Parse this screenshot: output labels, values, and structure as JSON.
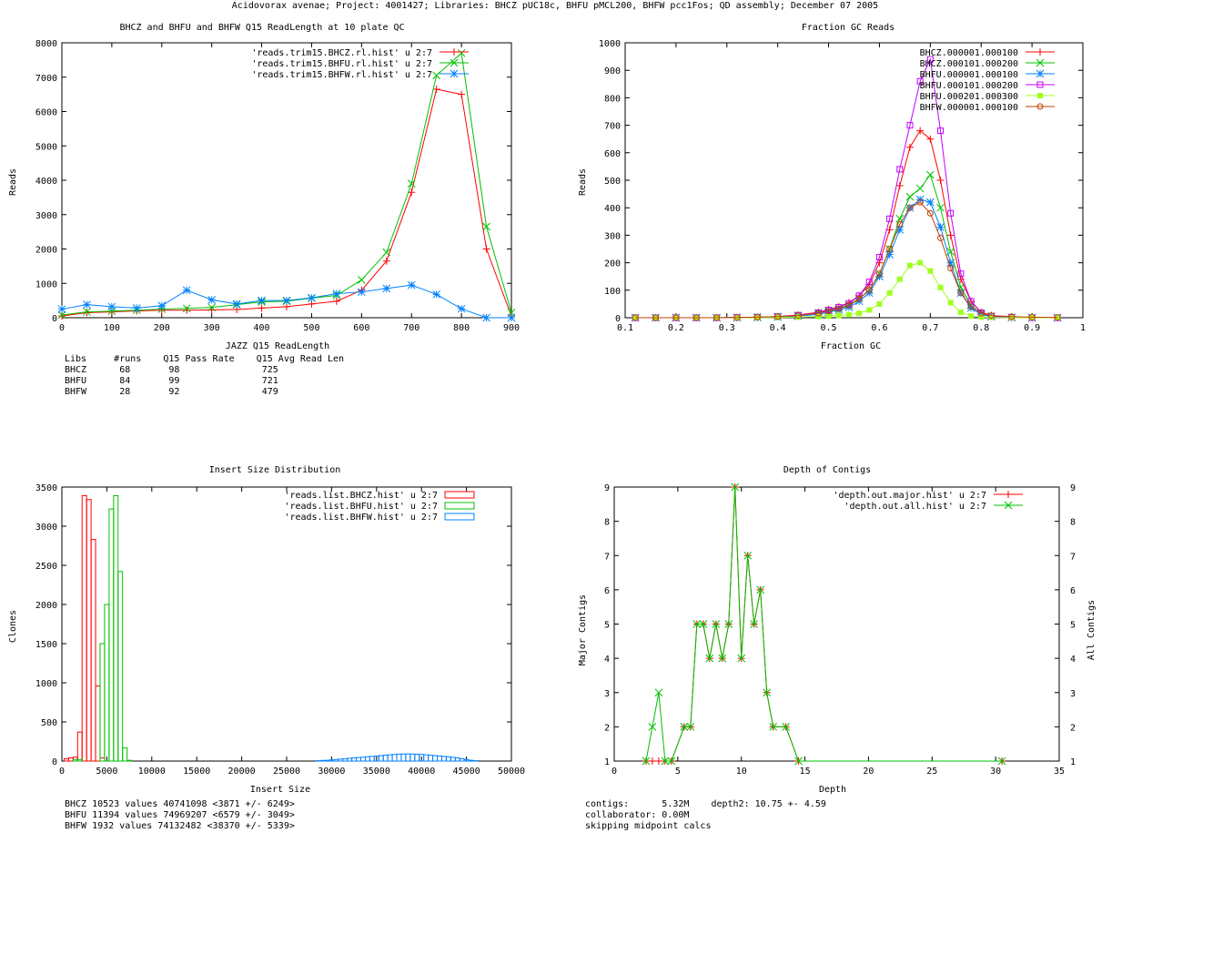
{
  "page_title": "Acidovorax avenae; Project: 4001427; Libraries: BHCZ pUC18c, BHFU pMCL200, BHFW pcc1Fos; QD assembly; December 07 2005",
  "colors": {
    "red": "#ff0000",
    "green": "#00c000",
    "blue": "#0080ff",
    "magenta": "#c000ff",
    "lime": "#a0ff20",
    "brown": "#c04000",
    "frame": "#000000"
  },
  "chart_data": [
    {
      "id": "readlength",
      "type": "line",
      "title": "BHCZ and BHFU and BHFW Q15 ReadLength at 10 plate QC",
      "xlabel": "JAZZ Q15 ReadLength",
      "ylabel": "Reads",
      "xlim": [
        0,
        900
      ],
      "ylim": [
        0,
        8000
      ],
      "xticks": [
        0,
        100,
        200,
        300,
        400,
        500,
        600,
        700,
        800,
        900
      ],
      "yticks": [
        0,
        1000,
        2000,
        3000,
        4000,
        5000,
        6000,
        7000,
        8000
      ],
      "x": [
        0,
        50,
        100,
        150,
        200,
        250,
        300,
        350,
        400,
        450,
        500,
        550,
        600,
        650,
        700,
        750,
        800,
        850,
        900
      ],
      "series": [
        {
          "name": "'reads.trim15.BHCZ.rl.hist' u 2:7",
          "color": "#ff0000",
          "marker": "plus",
          "values": [
            50,
            150,
            170,
            200,
            220,
            220,
            230,
            240,
            280,
            320,
            400,
            480,
            800,
            1650,
            3650,
            6650,
            6500,
            2000,
            50
          ]
        },
        {
          "name": "'reads.trim15.BHFU.rl.hist' u 2:7",
          "color": "#00c000",
          "marker": "cross",
          "values": [
            80,
            170,
            190,
            220,
            250,
            270,
            300,
            380,
            460,
            480,
            570,
            650,
            1100,
            1900,
            3900,
            7050,
            7700,
            2650,
            150
          ]
        },
        {
          "name": "'reads.trim15.BHFW.rl.hist' u 2:7",
          "color": "#0080ff",
          "marker": "star",
          "values": [
            250,
            380,
            320,
            280,
            350,
            800,
            520,
            400,
            500,
            500,
            580,
            700,
            750,
            850,
            950,
            680,
            260,
            0,
            0
          ]
        }
      ],
      "table": {
        "header": "Libs     #runs    Q15 Pass Rate    Q15 Avg Read Len",
        "rows": [
          "BHCZ      68       98               725",
          "BHFU      84       99               721",
          "BHFW      28       92               479"
        ]
      }
    },
    {
      "id": "gc",
      "type": "scatter",
      "title": "Fraction GC Reads",
      "xlabel": "Fraction GC",
      "ylabel": "Reads",
      "xlim": [
        0.1,
        1.0
      ],
      "ylim": [
        0,
        1000
      ],
      "xticks": [
        0.1,
        0.2,
        0.3,
        0.4,
        0.5,
        0.6,
        0.7,
        0.8,
        0.9,
        1.0
      ],
      "xtick_labels": [
        "0.1",
        "0.2",
        "0.3",
        "0.4",
        "0.5",
        "0.6",
        "0.7",
        "0.8",
        "0.9",
        "1"
      ],
      "yticks": [
        0,
        100,
        200,
        300,
        400,
        500,
        600,
        700,
        800,
        900,
        1000
      ],
      "x": [
        0.12,
        0.16,
        0.2,
        0.24,
        0.28,
        0.32,
        0.36,
        0.4,
        0.44,
        0.48,
        0.5,
        0.52,
        0.54,
        0.56,
        0.58,
        0.6,
        0.62,
        0.64,
        0.66,
        0.68,
        0.7,
        0.72,
        0.74,
        0.76,
        0.78,
        0.8,
        0.82,
        0.86,
        0.9,
        0.95
      ],
      "series": [
        {
          "name": "BHCZ.000001.000100",
          "color": "#ff0000",
          "marker": "plus",
          "values": [
            0,
            0,
            0,
            0,
            0,
            1,
            2,
            4,
            10,
            20,
            30,
            40,
            55,
            80,
            120,
            200,
            320,
            480,
            620,
            680,
            650,
            500,
            300,
            140,
            60,
            20,
            8,
            2,
            1,
            0
          ]
        },
        {
          "name": "BHCZ.000101.000200",
          "color": "#00c000",
          "marker": "cross",
          "values": [
            0,
            0,
            0,
            0,
            0,
            1,
            2,
            4,
            8,
            18,
            26,
            34,
            46,
            70,
            100,
            160,
            250,
            360,
            440,
            470,
            520,
            400,
            240,
            110,
            45,
            15,
            5,
            1,
            0,
            0
          ]
        },
        {
          "name": "BHFU.000001.000100",
          "color": "#0080ff",
          "marker": "star",
          "values": [
            0,
            0,
            0,
            0,
            0,
            1,
            1,
            3,
            6,
            12,
            20,
            28,
            38,
            60,
            90,
            150,
            230,
            320,
            400,
            430,
            420,
            330,
            200,
            90,
            35,
            12,
            4,
            1,
            0,
            0
          ]
        },
        {
          "name": "BHFU.000101.000200",
          "color": "#c000ff",
          "marker": "square",
          "values": [
            0,
            0,
            0,
            0,
            0,
            1,
            2,
            4,
            9,
            18,
            28,
            38,
            52,
            80,
            130,
            220,
            360,
            540,
            700,
            860,
            940,
            680,
            380,
            160,
            60,
            18,
            6,
            1,
            0,
            0
          ]
        },
        {
          "name": "BHFU.000201.000300",
          "color": "#a0ff20",
          "marker": "filled-square",
          "values": [
            0,
            0,
            0,
            0,
            0,
            0,
            0,
            1,
            2,
            4,
            6,
            8,
            11,
            16,
            28,
            50,
            90,
            140,
            190,
            200,
            170,
            110,
            55,
            20,
            6,
            2,
            1,
            0,
            0,
            0
          ]
        },
        {
          "name": "BHFW.000001.000100",
          "color": "#c04000",
          "marker": "circle",
          "values": [
            0,
            0,
            0,
            0,
            0,
            1,
            2,
            4,
            8,
            16,
            24,
            32,
            44,
            68,
            100,
            160,
            250,
            340,
            400,
            420,
            380,
            290,
            180,
            90,
            40,
            16,
            8,
            4,
            2,
            1
          ]
        }
      ]
    },
    {
      "id": "insert",
      "type": "bar",
      "title": "Insert Size Distribution",
      "xlabel": "Insert Size",
      "ylabel": "Clones",
      "xlim": [
        0,
        50000
      ],
      "ylim": [
        0,
        3500
      ],
      "xticks": [
        0,
        5000,
        10000,
        15000,
        20000,
        25000,
        30000,
        35000,
        40000,
        45000,
        50000
      ],
      "yticks": [
        0,
        500,
        1000,
        1500,
        2000,
        2500,
        3000,
        3500
      ],
      "bin_width": 500,
      "series": [
        {
          "name": "'reads.list.BHCZ.hist' u 2:7",
          "color": "#ff0000",
          "x": [
            500,
            1000,
            1500,
            2000,
            2500,
            3000,
            3500,
            4000,
            4500
          ],
          "values": [
            30,
            40,
            50,
            370,
            3390,
            3340,
            2830,
            960,
            40
          ]
        },
        {
          "name": "'reads.list.BHFU.hist' u 2:7",
          "color": "#00c000",
          "x": [
            1500,
            2000,
            4500,
            5000,
            5500,
            6000,
            6500,
            7000,
            7500
          ],
          "values": [
            20,
            20,
            1500,
            2000,
            3220,
            3390,
            2420,
            170,
            10
          ]
        },
        {
          "name": "'reads.list.BHFW.hist' u 2:7",
          "color": "#0080ff",
          "x": [
            28500,
            29000,
            29500,
            30000,
            30500,
            31000,
            31500,
            32000,
            32500,
            33000,
            33500,
            34000,
            34500,
            35000,
            35500,
            36000,
            36500,
            37000,
            37500,
            38000,
            38500,
            39000,
            39500,
            40000,
            40500,
            41000,
            41500,
            42000,
            42500,
            43000,
            43500,
            44000,
            44500,
            45000,
            45500,
            46000
          ],
          "values": [
            5,
            8,
            10,
            15,
            20,
            25,
            30,
            35,
            40,
            45,
            50,
            55,
            60,
            65,
            70,
            75,
            80,
            85,
            90,
            90,
            92,
            90,
            88,
            85,
            80,
            75,
            70,
            65,
            60,
            55,
            48,
            40,
            30,
            20,
            10,
            5
          ]
        }
      ],
      "stats": [
        "BHCZ 10523 values 40741098 <3871 +/- 6249>",
        "BHFU 11394 values 74969207 <6579 +/- 3049>",
        "BHFW 1932 values 74132482 <38370 +/- 5339>"
      ]
    },
    {
      "id": "depth",
      "type": "line",
      "title": "Depth of Contigs",
      "xlabel": "Depth",
      "ylabel": "Major Contigs",
      "y2label": "All Contigs",
      "xlim": [
        0,
        35
      ],
      "ylim": [
        1,
        9
      ],
      "xticks": [
        0,
        5,
        10,
        15,
        20,
        25,
        30,
        35
      ],
      "yticks": [
        1,
        2,
        3,
        4,
        5,
        6,
        7,
        8,
        9
      ],
      "series": [
        {
          "name": "'depth.out.major.hist' u 2:7",
          "color": "#ff0000",
          "marker": "plus",
          "x": [
            2.5,
            3.0,
            3.5,
            4.0,
            4.5,
            5.5,
            6.0,
            6.5,
            7.0,
            7.5,
            8.0,
            8.5,
            9.0,
            9.5,
            10.0,
            10.5,
            11.0,
            11.5,
            12.0,
            12.5,
            13.5,
            14.5,
            30.5
          ],
          "values": [
            1,
            1,
            1,
            1,
            1,
            2,
            2,
            5,
            5,
            4,
            5,
            4,
            5,
            9,
            4,
            7,
            5,
            6,
            3,
            2,
            2,
            1,
            1
          ]
        },
        {
          "name": "'depth.out.all.hist' u 2:7",
          "color": "#00c000",
          "marker": "cross",
          "x": [
            2.5,
            3.0,
            3.5,
            4.0,
            4.5,
            5.5,
            6.0,
            6.5,
            7.0,
            7.5,
            8.0,
            8.5,
            9.0,
            9.5,
            10.0,
            10.5,
            11.0,
            11.5,
            12.0,
            12.5,
            13.5,
            14.5,
            30.5
          ],
          "values": [
            1,
            2,
            3,
            1,
            1,
            2,
            2,
            5,
            5,
            4,
            5,
            4,
            5,
            9,
            4,
            7,
            5,
            6,
            3,
            2,
            2,
            1,
            1
          ]
        }
      ],
      "stats": [
        "contigs:      5.32M    depth2: 10.75 +- 4.59",
        "collaborator: 0.00M",
        "skipping midpoint calcs"
      ]
    }
  ]
}
